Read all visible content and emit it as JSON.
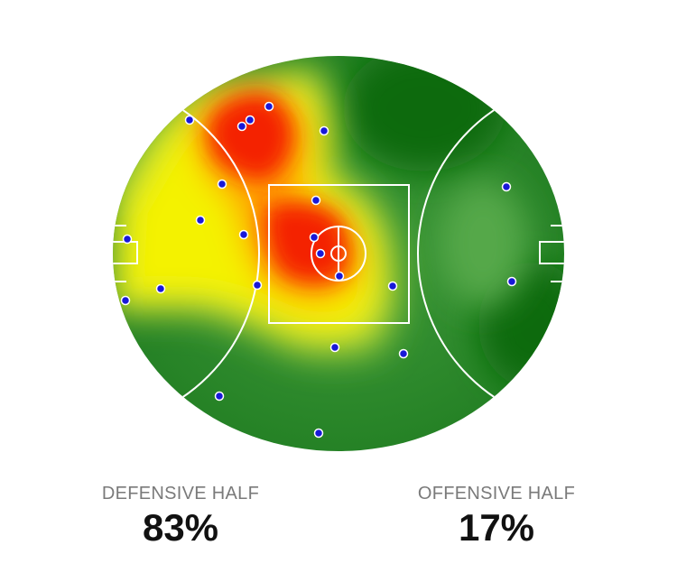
{
  "stats": [
    {
      "label": "DEFENSIVE HALF",
      "value": "83%"
    },
    {
      "label": "OFFENSIVE HALF",
      "value": "17%"
    }
  ]
}
